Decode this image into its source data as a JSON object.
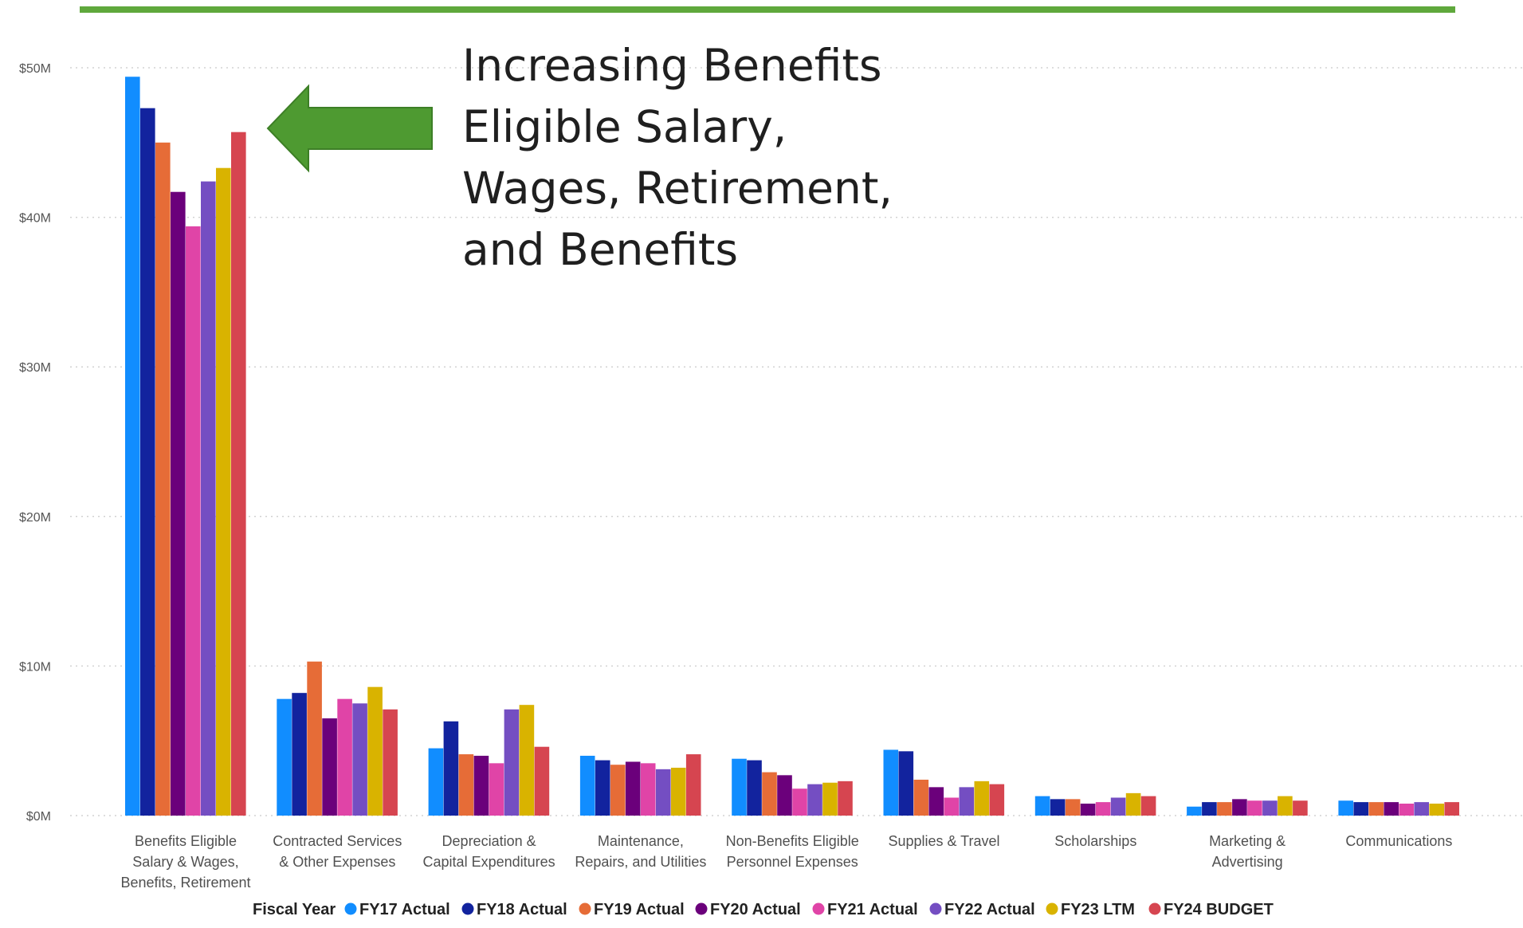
{
  "annotation": {
    "text": "Increasing Benefits\nEligible Salary,\nWages, Retirement,\nand Benefits"
  },
  "colors": {
    "top_rule": "#5fa83c",
    "arrow": "#4e9a31",
    "grid": "#d2d2d2"
  },
  "chart_data": {
    "type": "bar",
    "title": "",
    "xlabel": "",
    "ylabel": "",
    "ylim": [
      0,
      50
    ],
    "y_unit": "$M",
    "y_ticks": [
      0,
      10,
      20,
      30,
      40,
      50
    ],
    "y_tick_labels": [
      "$0M",
      "$10M",
      "$20M",
      "$30M",
      "$40M",
      "$50M"
    ],
    "grid": true,
    "grid_style": "dotted horizontal",
    "legend": {
      "title": "Fiscal Year",
      "position": "bottom"
    },
    "categories": [
      "Benefits Eligible Salary & Wages, Benefits, Retirement",
      "Contracted Services & Other Expenses",
      "Depreciation & Capital Expenditures",
      "Maintenance, Repairs, and Utilities",
      "Non-Benefits Eligible Personnel Expenses",
      "Supplies & Travel",
      "Scholarships",
      "Marketing & Advertising",
      "Communications"
    ],
    "category_label_lines": [
      [
        "Benefits Eligible",
        "Salary & Wages,",
        "Benefits, Retirement"
      ],
      [
        "Contracted Services",
        "& Other Expenses"
      ],
      [
        "Depreciation &",
        "Capital Expenditures"
      ],
      [
        "Maintenance,",
        "Repairs, and Utilities"
      ],
      [
        "Non-Benefits Eligible",
        "Personnel Expenses"
      ],
      [
        "Supplies & Travel"
      ],
      [
        "Scholarships"
      ],
      [
        "Marketing &",
        "Advertising"
      ],
      [
        "Communications"
      ]
    ],
    "series": [
      {
        "name": "FY17 Actual",
        "color": "#118dff",
        "values": [
          49.4,
          7.8,
          4.5,
          4.0,
          3.8,
          4.4,
          1.3,
          0.6,
          1.0
        ]
      },
      {
        "name": "FY18 Actual",
        "color": "#12239e",
        "values": [
          47.3,
          8.2,
          6.3,
          3.7,
          3.7,
          4.3,
          1.1,
          0.9,
          0.9
        ]
      },
      {
        "name": "FY19 Actual",
        "color": "#e66c37",
        "values": [
          45.0,
          10.3,
          4.1,
          3.4,
          2.9,
          2.4,
          1.1,
          0.9,
          0.9
        ]
      },
      {
        "name": "FY20 Actual",
        "color": "#6b007b",
        "values": [
          41.7,
          6.5,
          4.0,
          3.6,
          2.7,
          1.9,
          0.8,
          1.1,
          0.9
        ]
      },
      {
        "name": "FY21 Actual",
        "color": "#e044a7",
        "values": [
          39.4,
          7.8,
          3.5,
          3.5,
          1.8,
          1.2,
          0.9,
          1.0,
          0.8
        ]
      },
      {
        "name": "FY22 Actual",
        "color": "#744ec2",
        "values": [
          42.4,
          7.5,
          7.1,
          3.1,
          2.1,
          1.9,
          1.2,
          1.0,
          0.9
        ]
      },
      {
        "name": "FY23 LTM",
        "color": "#d9b300",
        "values": [
          43.3,
          8.6,
          7.4,
          3.2,
          2.2,
          2.3,
          1.5,
          1.3,
          0.8
        ]
      },
      {
        "name": "FY24 BUDGET",
        "color": "#d64550",
        "values": [
          45.7,
          7.1,
          4.6,
          4.1,
          2.3,
          2.1,
          1.3,
          1.0,
          0.9
        ]
      }
    ]
  }
}
